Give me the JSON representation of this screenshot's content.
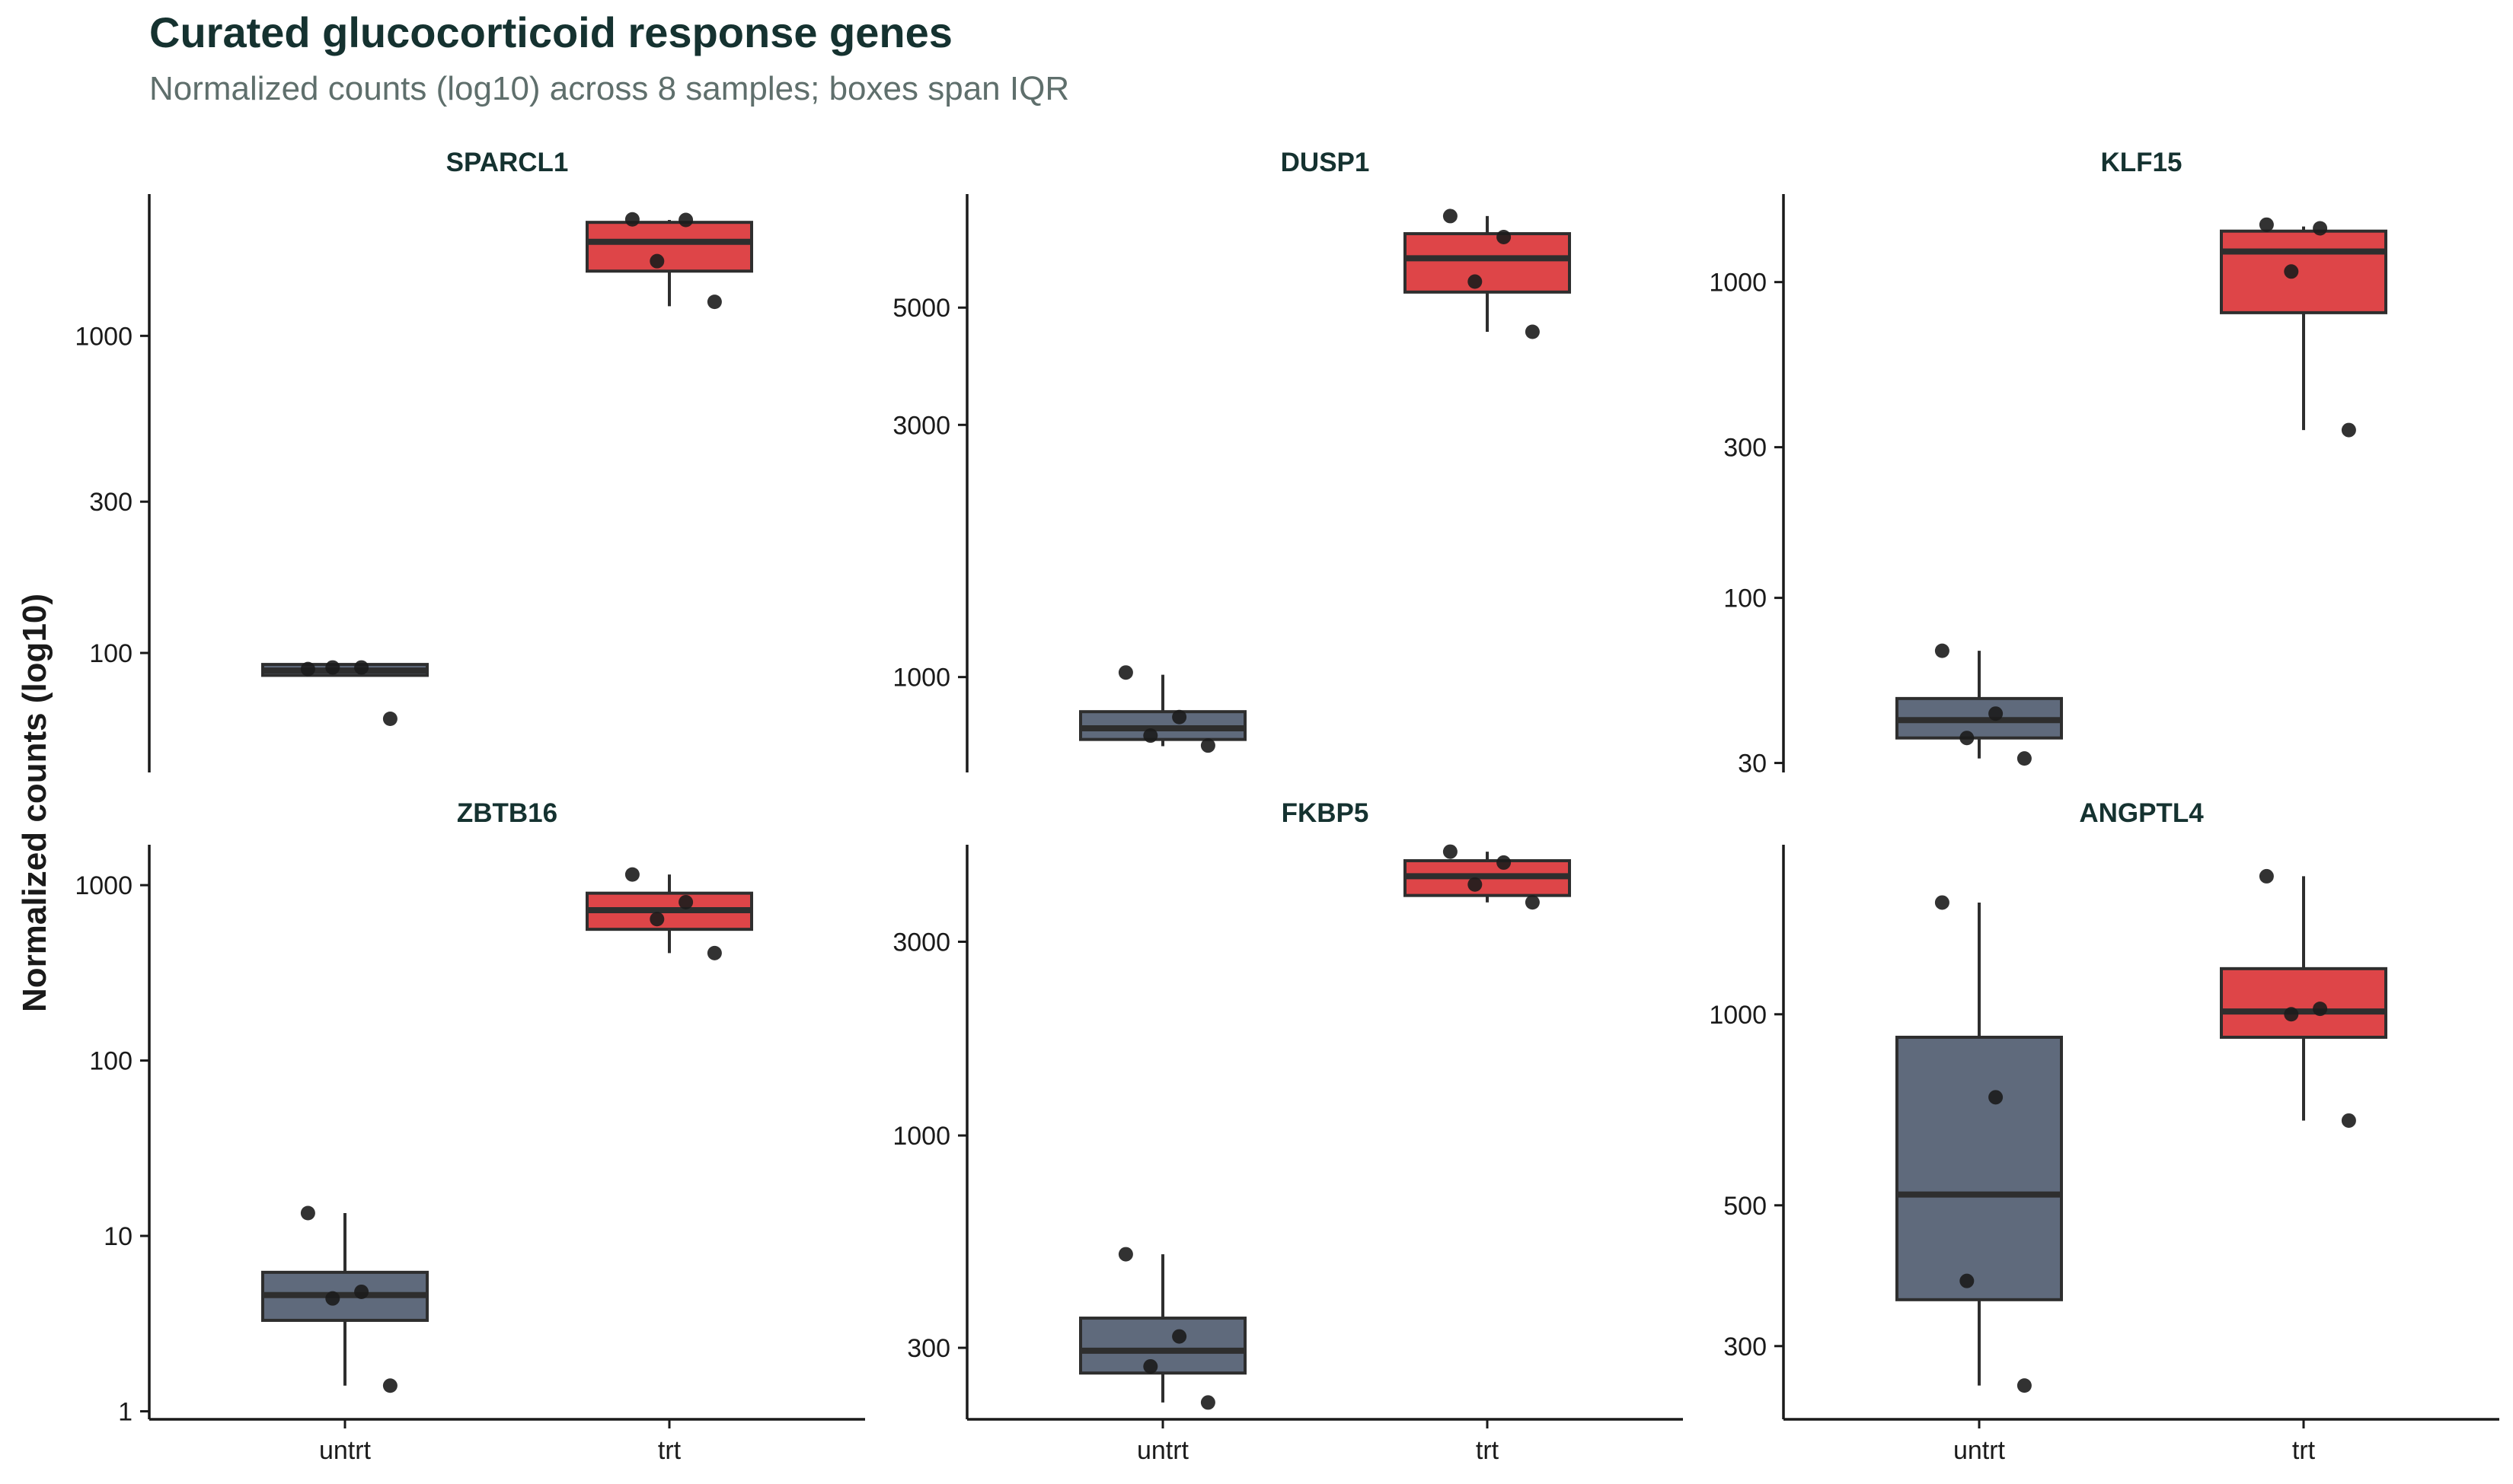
{
  "title": "Curated glucocorticoid response genes",
  "subtitle": "Normalized counts (log10) across 8 samples; boxes span IQR",
  "colors": {
    "untrt": "#5f6a7c",
    "trt": "#de4548",
    "point": "#1c1c1c",
    "median": "#2e2e2e",
    "title": "#153230",
    "subtitle": "#5f6f6c"
  },
  "chart_data": {
    "type": "box",
    "ylabel": "Normalized counts (log10)",
    "yscale": "log10",
    "groups": [
      "untrt",
      "trt"
    ],
    "panels": [
      {
        "gene": "SPARCL1",
        "ylim": [
          42,
          2800
        ],
        "yticks": [
          100,
          300,
          1000
        ],
        "boxes": [
          {
            "group": "untrt",
            "q1": 85,
            "median": 88,
            "q3": 92,
            "whisker_low": 85,
            "whisker_high": 92,
            "points": [
              89,
              90,
              90,
              62
            ]
          },
          {
            "group": "trt",
            "q1": 1600,
            "median": 1980,
            "q3": 2280,
            "whisker_low": 1240,
            "whisker_high": 2320,
            "points": [
              2330,
              2320,
              1720,
              1280
            ]
          }
        ]
      },
      {
        "gene": "DUSP1",
        "ylim": [
          660,
          8200
        ],
        "yticks": [
          1000,
          3000,
          5000
        ],
        "boxes": [
          {
            "group": "untrt",
            "q1": 762,
            "median": 800,
            "q3": 860,
            "whisker_low": 740,
            "whisker_high": 1010,
            "points": [
              1020,
              840,
              775,
              742
            ]
          },
          {
            "group": "trt",
            "q1": 5350,
            "median": 6200,
            "q3": 6900,
            "whisker_low": 4500,
            "whisker_high": 7450,
            "points": [
              7450,
              6800,
              5600,
              4500
            ]
          }
        ]
      },
      {
        "gene": "KLF15",
        "ylim": [
          28,
          1900
        ],
        "yticks": [
          30,
          100,
          300,
          1000
        ],
        "boxes": [
          {
            "group": "untrt",
            "q1": 36,
            "median": 41,
            "q3": 48,
            "whisker_low": 31,
            "whisker_high": 68,
            "points": [
              68,
              43,
              36,
              31
            ]
          },
          {
            "group": "trt",
            "q1": 800,
            "median": 1250,
            "q3": 1450,
            "whisker_low": 340,
            "whisker_high": 1500,
            "points": [
              1520,
              1480,
              1080,
              340
            ]
          }
        ]
      },
      {
        "gene": "ZBTB16",
        "ylim": [
          0.9,
          1700
        ],
        "yticks": [
          1,
          10,
          100,
          1000
        ],
        "boxes": [
          {
            "group": "untrt",
            "q1": 3.3,
            "median": 4.6,
            "q3": 6.2,
            "whisker_low": 1.4,
            "whisker_high": 13.5,
            "points": [
              13.5,
              4.8,
              4.4,
              1.4
            ]
          },
          {
            "group": "trt",
            "q1": 560,
            "median": 720,
            "q3": 900,
            "whisker_low": 410,
            "whisker_high": 1150,
            "points": [
              1150,
              800,
              640,
              410
            ]
          }
        ]
      },
      {
        "gene": "FKBP5",
        "ylim": [
          200,
          5200
        ],
        "yticks": [
          300,
          1000,
          3000
        ],
        "boxes": [
          {
            "group": "untrt",
            "q1": 260,
            "median": 295,
            "q3": 355,
            "whisker_low": 220,
            "whisker_high": 510,
            "points": [
              510,
              320,
              270,
              220
            ]
          },
          {
            "group": "trt",
            "q1": 3900,
            "median": 4350,
            "q3": 4750,
            "whisker_low": 3750,
            "whisker_high": 5000,
            "points": [
              5000,
              4700,
              4150,
              3750
            ]
          }
        ]
      },
      {
        "gene": "ANGPTL4",
        "ylim": [
          230,
          1850
        ],
        "yticks": [
          300,
          500,
          1000
        ],
        "boxes": [
          {
            "group": "untrt",
            "q1": 355,
            "median": 520,
            "q3": 920,
            "whisker_low": 260,
            "whisker_high": 1500,
            "points": [
              1500,
              740,
              380,
              260
            ]
          },
          {
            "group": "trt",
            "q1": 920,
            "median": 1010,
            "q3": 1180,
            "whisker_low": 680,
            "whisker_high": 1650,
            "points": [
              1650,
              1020,
              1000,
              680
            ]
          }
        ]
      }
    ]
  }
}
